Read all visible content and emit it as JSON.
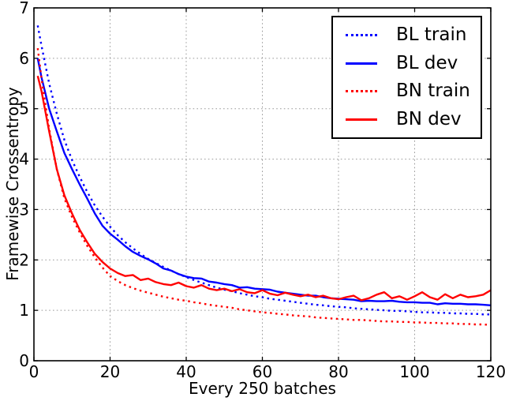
{
  "chart_data": {
    "type": "line",
    "title": "",
    "xlabel": "Every 250 batches",
    "ylabel": "Framewise Crossentropy",
    "xlim": [
      0,
      120
    ],
    "ylim": [
      0,
      7
    ],
    "x_ticks": [
      0,
      20,
      40,
      60,
      80,
      100,
      120
    ],
    "y_ticks": [
      0,
      1,
      2,
      3,
      4,
      5,
      6,
      7
    ],
    "grid": true,
    "grid_color": "#999999",
    "axis_color": "#000000",
    "legend_position": "upper right",
    "x": [
      1,
      2,
      4,
      6,
      8,
      10,
      12,
      14,
      16,
      18,
      20,
      22,
      24,
      26,
      28,
      30,
      32,
      34,
      36,
      38,
      40,
      42,
      44,
      46,
      48,
      50,
      52,
      54,
      56,
      58,
      60,
      62,
      64,
      66,
      68,
      70,
      72,
      74,
      76,
      78,
      80,
      82,
      84,
      86,
      88,
      90,
      92,
      94,
      96,
      98,
      100,
      102,
      104,
      106,
      108,
      110,
      112,
      114,
      116,
      118,
      120
    ],
    "series": [
      {
        "name": "BL train",
        "color": "#0000ff",
        "style": "dotted",
        "y": [
          6.65,
          6.25,
          5.5,
          4.9,
          4.38,
          3.98,
          3.65,
          3.35,
          3.08,
          2.86,
          2.66,
          2.49,
          2.35,
          2.23,
          2.12,
          2.02,
          1.94,
          1.86,
          1.79,
          1.72,
          1.66,
          1.6,
          1.55,
          1.5,
          1.45,
          1.41,
          1.38,
          1.34,
          1.31,
          1.28,
          1.26,
          1.23,
          1.21,
          1.19,
          1.17,
          1.15,
          1.13,
          1.11,
          1.1,
          1.08,
          1.07,
          1.06,
          1.04,
          1.03,
          1.02,
          1.01,
          1.0,
          0.99,
          0.99,
          0.98,
          0.97,
          0.96,
          0.96,
          0.95,
          0.95,
          0.94,
          0.94,
          0.93,
          0.93,
          0.92,
          0.92
        ]
      },
      {
        "name": "BL dev",
        "color": "#0000ff",
        "style": "solid",
        "y": [
          6.0,
          5.62,
          5.0,
          4.55,
          4.12,
          3.8,
          3.5,
          3.22,
          2.92,
          2.68,
          2.52,
          2.4,
          2.27,
          2.16,
          2.08,
          2.01,
          1.93,
          1.83,
          1.79,
          1.72,
          1.67,
          1.64,
          1.63,
          1.57,
          1.55,
          1.52,
          1.5,
          1.45,
          1.46,
          1.43,
          1.42,
          1.41,
          1.37,
          1.35,
          1.33,
          1.31,
          1.29,
          1.29,
          1.26,
          1.24,
          1.23,
          1.22,
          1.21,
          1.18,
          1.19,
          1.18,
          1.18,
          1.19,
          1.17,
          1.16,
          1.16,
          1.15,
          1.15,
          1.12,
          1.14,
          1.13,
          1.13,
          1.12,
          1.12,
          1.11,
          1.1
        ]
      },
      {
        "name": "BN train",
        "color": "#ff0000",
        "style": "dotted",
        "y": [
          6.2,
          5.6,
          4.6,
          3.8,
          3.22,
          2.85,
          2.55,
          2.28,
          2.05,
          1.85,
          1.68,
          1.58,
          1.5,
          1.44,
          1.39,
          1.35,
          1.31,
          1.27,
          1.24,
          1.21,
          1.19,
          1.16,
          1.14,
          1.11,
          1.09,
          1.07,
          1.05,
          1.02,
          1.0,
          0.98,
          0.96,
          0.95,
          0.93,
          0.92,
          0.9,
          0.89,
          0.88,
          0.86,
          0.85,
          0.84,
          0.83,
          0.82,
          0.81,
          0.81,
          0.8,
          0.79,
          0.78,
          0.78,
          0.77,
          0.77,
          0.76,
          0.76,
          0.75,
          0.75,
          0.74,
          0.74,
          0.73,
          0.73,
          0.72,
          0.72,
          0.71
        ]
      },
      {
        "name": "BN dev",
        "color": "#ff0000",
        "style": "solid",
        "y": [
          5.65,
          5.35,
          4.55,
          3.8,
          3.28,
          2.92,
          2.6,
          2.35,
          2.12,
          1.96,
          1.83,
          1.74,
          1.68,
          1.7,
          1.6,
          1.63,
          1.56,
          1.52,
          1.5,
          1.55,
          1.48,
          1.45,
          1.5,
          1.43,
          1.4,
          1.43,
          1.38,
          1.42,
          1.36,
          1.34,
          1.4,
          1.33,
          1.3,
          1.35,
          1.31,
          1.28,
          1.31,
          1.26,
          1.29,
          1.24,
          1.22,
          1.26,
          1.29,
          1.2,
          1.24,
          1.31,
          1.36,
          1.24,
          1.28,
          1.21,
          1.28,
          1.36,
          1.26,
          1.21,
          1.32,
          1.24,
          1.31,
          1.26,
          1.28,
          1.31,
          1.4
        ]
      }
    ]
  }
}
